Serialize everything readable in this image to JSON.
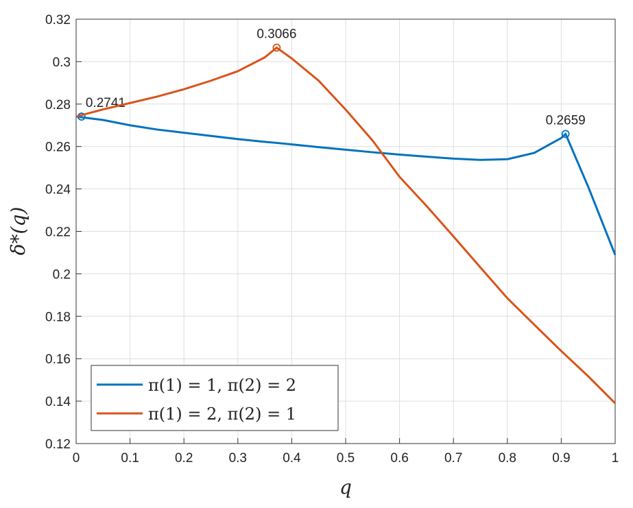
{
  "chart_data": {
    "type": "line",
    "xlabel": "q",
    "ylabel": "δ*(q)",
    "xlim": [
      0,
      1
    ],
    "ylim": [
      0.12,
      0.32
    ],
    "xticks": [
      0,
      0.1,
      0.2,
      0.3,
      0.4,
      0.5,
      0.6,
      0.7,
      0.8,
      0.9,
      1
    ],
    "yticks": [
      0.12,
      0.14,
      0.16,
      0.18,
      0.2,
      0.22,
      0.24,
      0.26,
      0.28,
      0.3,
      0.32
    ],
    "grid": true,
    "legend": "lower-left",
    "x": [
      0,
      0.05,
      0.1,
      0.15,
      0.2,
      0.25,
      0.3,
      0.35,
      0.372,
      0.4,
      0.45,
      0.5,
      0.55,
      0.6,
      0.65,
      0.7,
      0.75,
      0.8,
      0.85,
      0.9,
      0.908,
      0.95,
      1
    ],
    "series": [
      {
        "name": "π(1) = 1, π(2) = 2",
        "color": "#0072bd",
        "values": [
          0.2741,
          0.2725,
          0.27,
          0.268,
          0.2665,
          0.265,
          0.2635,
          0.2622,
          0.2617,
          0.261,
          0.2597,
          0.2585,
          0.2573,
          0.2562,
          0.2552,
          0.2543,
          0.2537,
          0.254,
          0.257,
          0.264,
          0.2659,
          0.241,
          0.2089
        ],
        "markers_x": [
          0.01,
          0.908
        ],
        "markers": [
          0.2741,
          0.2659
        ]
      },
      {
        "name": "π(1) = 2, π(2) = 1",
        "color": "#d95319",
        "values": [
          0.2741,
          0.2775,
          0.2805,
          0.2835,
          0.287,
          0.291,
          0.2955,
          0.302,
          0.3066,
          0.3015,
          0.291,
          0.2774,
          0.2628,
          0.2457,
          0.232,
          0.2176,
          0.203,
          0.1885,
          0.176,
          0.1636,
          0.1617,
          0.1517,
          0.139
        ],
        "markers_x": [
          0.372
        ],
        "markers": [
          0.3066
        ]
      }
    ]
  }
}
